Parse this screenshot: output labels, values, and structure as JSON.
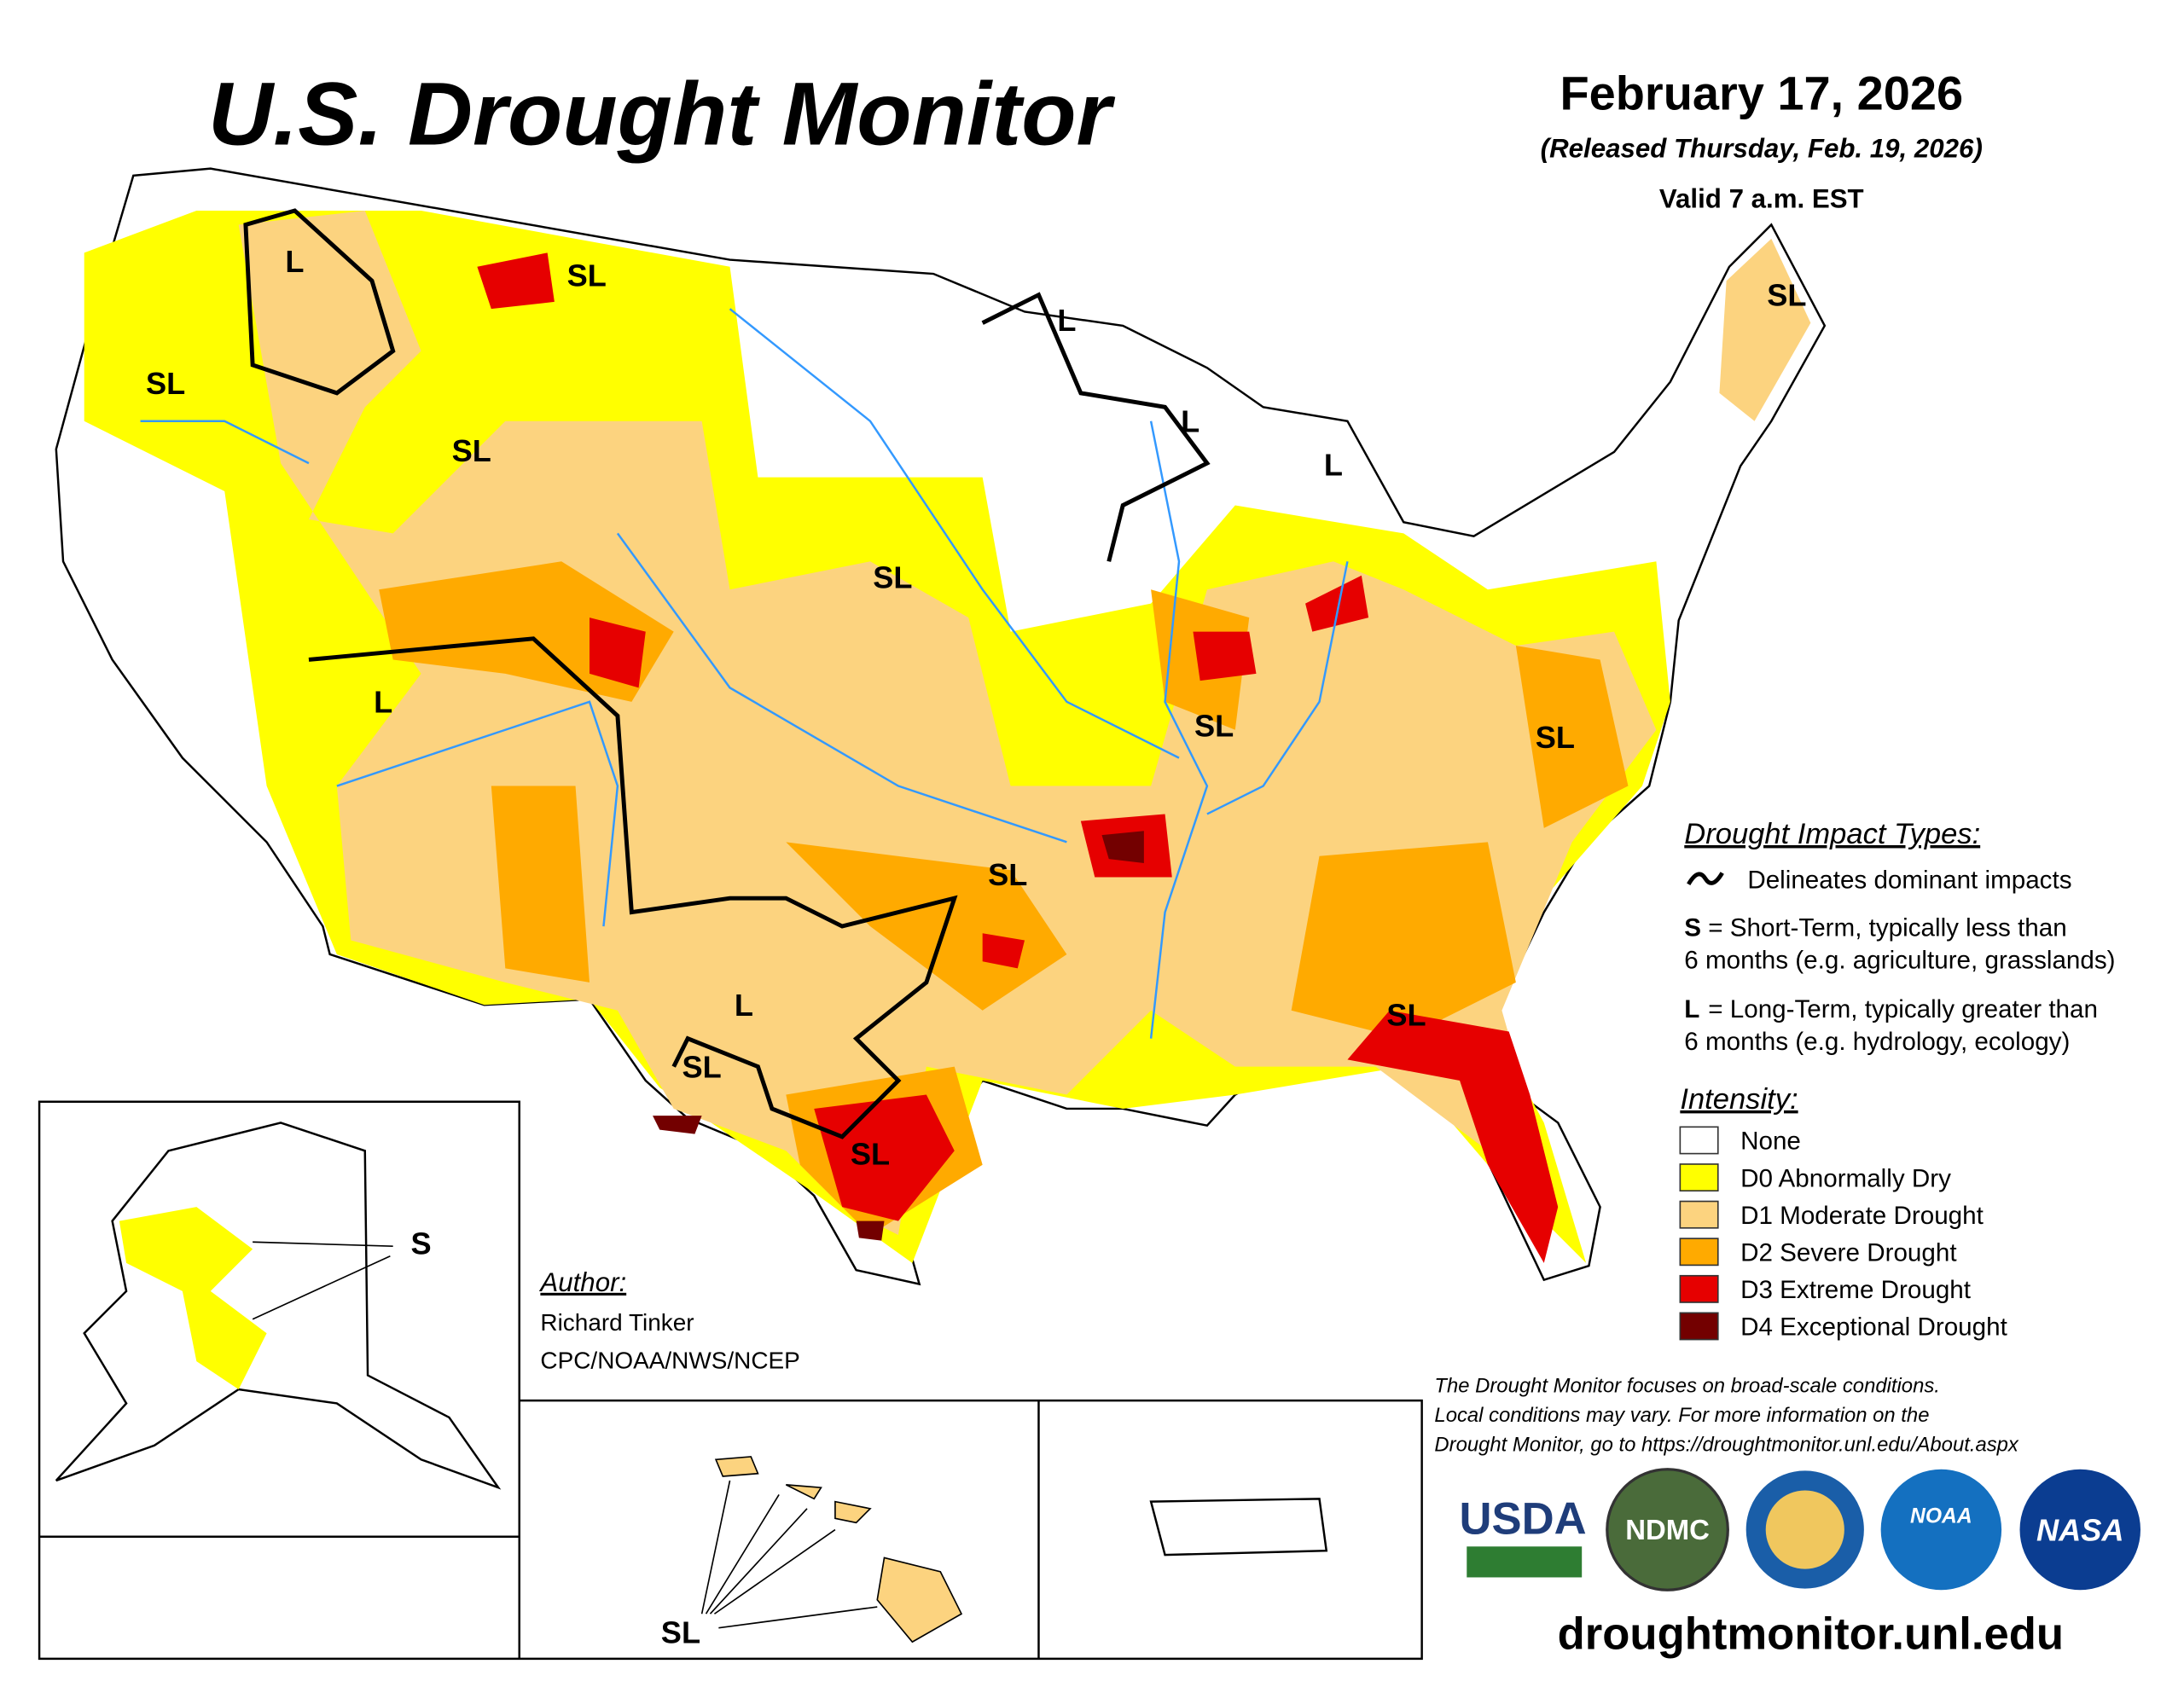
{
  "header": {
    "title": "U.S. Drought Monitor",
    "date": "February 17, 2026",
    "released": "(Released Thursday, Feb. 19, 2026)",
    "valid": "Valid 7 a.m. EST"
  },
  "impact_types": {
    "title": "Drought Impact Types:",
    "line": "Delineates dominant impacts",
    "short_key": "S",
    "short": [
      "= Short-Term, typically less than",
      "6 months (e.g. agriculture, grasslands)"
    ],
    "long_key": "L",
    "long": [
      "= Long-Term, typically greater than",
      "6 months (e.g. hydrology, ecology)"
    ]
  },
  "intensity": {
    "title": "Intensity:",
    "items": [
      {
        "label": "None",
        "color": "#ffffff"
      },
      {
        "label": "D0 Abnormally Dry",
        "color": "#ffff00"
      },
      {
        "label": "D1 Moderate Drought",
        "color": "#fcd37f"
      },
      {
        "label": "D2 Severe Drought",
        "color": "#ffaa00"
      },
      {
        "label": "D3 Extreme Drought",
        "color": "#e60000"
      },
      {
        "label": "D4 Exceptional Drought",
        "color": "#730000"
      }
    ]
  },
  "author": {
    "title": "Author:",
    "name": "Richard Tinker",
    "org": "CPC/NOAA/NWS/NCEP"
  },
  "disclaimer": [
    "The Drought Monitor focuses on broad-scale conditions.",
    "Local conditions may vary. For more information on the",
    "Drought Monitor, go to https://droughtmonitor.unl.edu/About.aspx"
  ],
  "url": "droughtmonitor.unl.edu",
  "logos": [
    "USDA",
    "NDMC",
    "NOAA",
    "NASA"
  ],
  "map_labels": [
    "L",
    "SL",
    "SL",
    "L",
    "SL",
    "L",
    "L",
    "SL",
    "SL",
    "L",
    "SL",
    "SL",
    "SL",
    "L",
    "SL",
    "SL",
    "SL",
    "S",
    "SL"
  ]
}
